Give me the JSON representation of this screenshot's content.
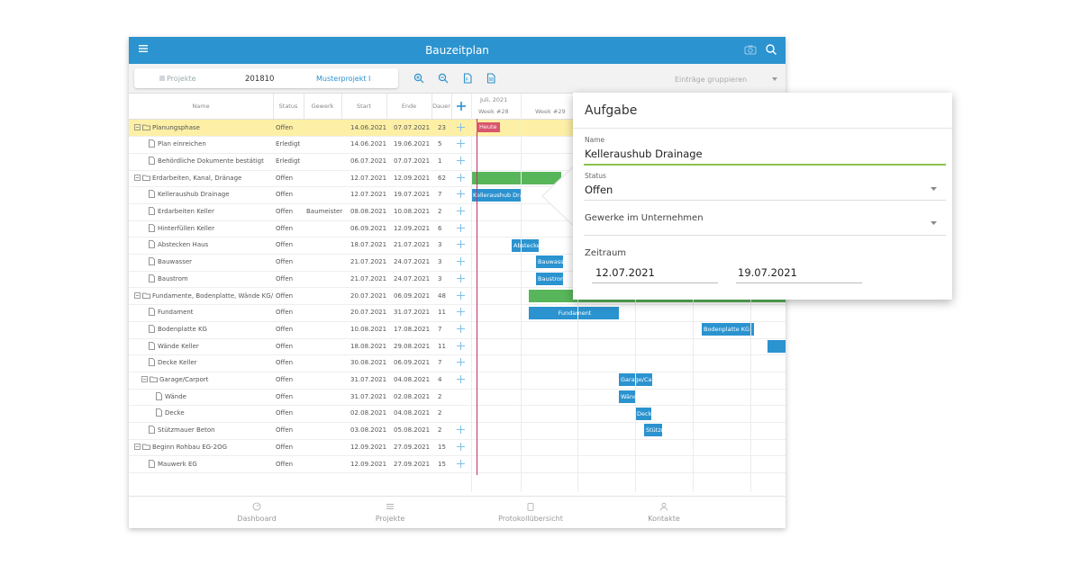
{
  "app": {
    "title": "Bauzeitplan"
  },
  "toolbar": {
    "projects_label": "Projekte",
    "project_number": "201810",
    "project_name": "Musterprojekt I",
    "grouping_placeholder": "Einträge gruppieren"
  },
  "grid": {
    "columns": {
      "name": "Name",
      "status": "Status",
      "gewerk": "Gewerk",
      "start": "Start",
      "ende": "Ende",
      "dauer": "Dauer"
    },
    "rows": [
      {
        "name": "Planungsphase",
        "type": "group",
        "status": "Offen",
        "gewerk": "",
        "start": "14.06.2021",
        "ende": "07.07.2021",
        "dauer": "23"
      },
      {
        "name": "Plan einreichen",
        "type": "task",
        "status": "Erledigt",
        "gewerk": "",
        "start": "14.06.2021",
        "ende": "19.06.2021",
        "dauer": "5"
      },
      {
        "name": "Behördliche Dokumente bestätigt",
        "type": "task",
        "status": "Erledigt",
        "gewerk": "",
        "start": "06.07.2021",
        "ende": "07.07.2021",
        "dauer": "1"
      },
      {
        "name": "Erdarbeiten, Kanal, Dränage",
        "type": "group",
        "status": "Offen",
        "gewerk": "",
        "start": "12.07.2021",
        "ende": "12.09.2021",
        "dauer": "62"
      },
      {
        "name": "Kelleraushub Drainage",
        "type": "task",
        "status": "Offen",
        "gewerk": "",
        "start": "12.07.2021",
        "ende": "19.07.2021",
        "dauer": "7"
      },
      {
        "name": "Erdarbeiten Keller",
        "type": "task",
        "status": "Offen",
        "gewerk": "Baumeister",
        "start": "08.08.2021",
        "ende": "10.08.2021",
        "dauer": "2"
      },
      {
        "name": "Hinterfüllen Keller",
        "type": "task",
        "status": "Offen",
        "gewerk": "",
        "start": "06.09.2021",
        "ende": "12.09.2021",
        "dauer": "6"
      },
      {
        "name": "Abstecken Haus",
        "type": "task",
        "status": "Offen",
        "gewerk": "",
        "start": "18.07.2021",
        "ende": "21.07.2021",
        "dauer": "3"
      },
      {
        "name": "Bauwasser",
        "type": "task",
        "status": "Offen",
        "gewerk": "",
        "start": "21.07.2021",
        "ende": "24.07.2021",
        "dauer": "3"
      },
      {
        "name": "Baustrom",
        "type": "task",
        "status": "Offen",
        "gewerk": "",
        "start": "21.07.2021",
        "ende": "24.07.2021",
        "dauer": "3"
      },
      {
        "name": "Fundamente, Bodenplatte, Wände KG/Garage",
        "type": "group",
        "status": "Offen",
        "gewerk": "",
        "start": "20.07.2021",
        "ende": "06.09.2021",
        "dauer": "48"
      },
      {
        "name": "Fundament",
        "type": "task",
        "status": "Offen",
        "gewerk": "",
        "start": "20.07.2021",
        "ende": "31.07.2021",
        "dauer": "11"
      },
      {
        "name": "Bodenplatte KG",
        "type": "task",
        "status": "Offen",
        "gewerk": "",
        "start": "10.08.2021",
        "ende": "17.08.2021",
        "dauer": "7"
      },
      {
        "name": "Wände Keller",
        "type": "task",
        "status": "Offen",
        "gewerk": "",
        "start": "18.08.2021",
        "ende": "29.08.2021",
        "dauer": "11"
      },
      {
        "name": "Decke Keller",
        "type": "task",
        "status": "Offen",
        "gewerk": "",
        "start": "30.08.2021",
        "ende": "06.09.2021",
        "dauer": "7"
      },
      {
        "name": "Garage/Carport",
        "type": "subgroup",
        "status": "Offen",
        "gewerk": "",
        "start": "31.07.2021",
        "ende": "04.08.2021",
        "dauer": "4"
      },
      {
        "name": "Wände",
        "type": "subtask",
        "status": "Offen",
        "gewerk": "",
        "start": "31.07.2021",
        "ende": "02.08.2021",
        "dauer": "2"
      },
      {
        "name": "Decke",
        "type": "subtask",
        "status": "Offen",
        "gewerk": "",
        "start": "02.08.2021",
        "ende": "04.08.2021",
        "dauer": "2"
      },
      {
        "name": "Stützmauer Beton",
        "type": "task",
        "status": "Offen",
        "gewerk": "",
        "start": "03.08.2021",
        "ende": "05.08.2021",
        "dauer": "2"
      },
      {
        "name": "Beginn Rohbau EG-2OG",
        "type": "group",
        "status": "Offen",
        "gewerk": "",
        "start": "12.09.2021",
        "ende": "27.09.2021",
        "dauer": "15"
      },
      {
        "name": "Mauwerk EG",
        "type": "task",
        "status": "Offen",
        "gewerk": "",
        "start": "12.09.2021",
        "ende": "27.09.2021",
        "dauer": "15"
      }
    ]
  },
  "timeline": {
    "month": "Juli, 2021",
    "weeks": [
      "Week #28",
      "Week #29"
    ],
    "today_label": "Heute",
    "bars": [
      {
        "label": "",
        "color": "#58b65a"
      },
      {
        "label": "Kelleraushub Drainage",
        "color": "#2b93cf"
      },
      {
        "label": "Abstecken Haus",
        "color": "#2b93cf"
      },
      {
        "label": "Bauwasser",
        "color": "#2b93cf"
      },
      {
        "label": "Baustrom",
        "color": "#2b93cf"
      },
      {
        "label": "",
        "color": "#58b65a"
      },
      {
        "label": "Fundament",
        "color": "#2b93cf"
      },
      {
        "label": "Bodenplatte KG",
        "color": "#2b93cf"
      },
      {
        "label": "",
        "color": "#2b93cf"
      },
      {
        "label": "Garage/Carport",
        "color": "#2b93cf"
      },
      {
        "label": "Wände",
        "color": "#2b93cf"
      },
      {
        "label": "Decke",
        "color": "#2b93cf"
      },
      {
        "label": "Stützmauer Beton",
        "color": "#2b93cf"
      }
    ]
  },
  "bottom_nav": {
    "dashboard": "Dashboard",
    "projekte": "Projekte",
    "protokoll": "Protokollübersicht",
    "kontakte": "Kontakte"
  },
  "panel": {
    "title": "Aufgabe",
    "name_label": "Name",
    "name_value": "Kelleraushub Drainage",
    "status_label": "Status",
    "status_value": "Offen",
    "gewerk_label": "Gewerke im Unternehmen",
    "zeitraum_label": "Zeitraum",
    "start_value": "12.07.2021",
    "end_value": "19.07.2021"
  },
  "colors": {
    "primary": "#2b93cf",
    "highlight_row": "#fdf0a6",
    "group_bar": "#58b65a",
    "today": "#d9566c",
    "input_active": "#8bc34a"
  }
}
